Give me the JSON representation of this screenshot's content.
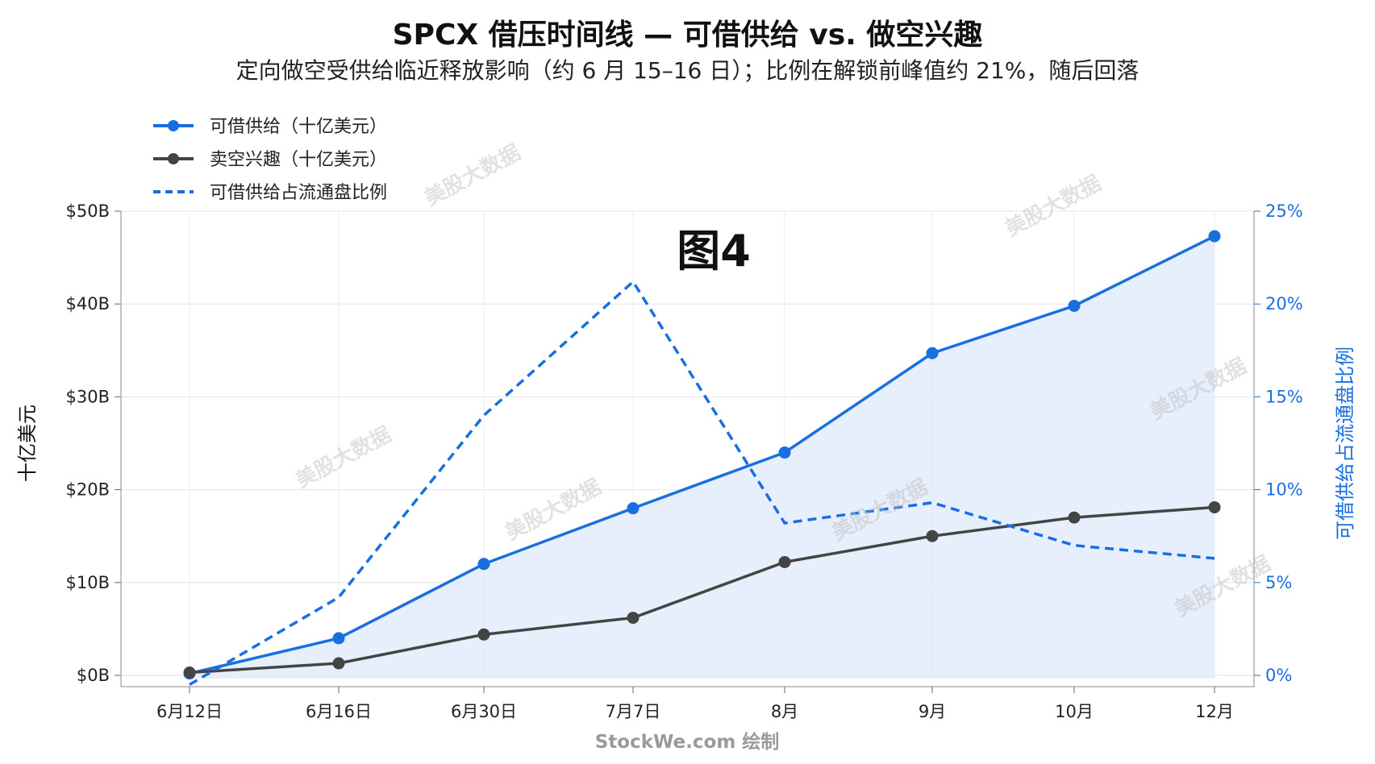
{
  "title": "SPCX 借压时间线 — 可借供给 vs. 做空兴趣",
  "subtitle": "定向做空受供给临近释放影响（约 6 月 15–16 日）；比例在解锁前峰值约 21%，随后回落",
  "badge": "图4",
  "credit": "StockWe.com 绘制",
  "watermark": "美股大数据",
  "chart_data": {
    "type": "line",
    "categories": [
      "6月12日",
      "6月16日",
      "6月30日",
      "7月7日",
      "8月",
      "9月",
      "10月",
      "12月"
    ],
    "series": [
      {
        "name": "可借供给（十亿美元）",
        "axis": "left",
        "style": "solid-marker",
        "color": "#1a6fe0",
        "values": [
          0.2,
          4,
          12,
          18,
          24,
          34.7,
          39.8,
          47.3
        ]
      },
      {
        "name": "卖空兴趣（十亿美元）",
        "axis": "left",
        "style": "solid-marker",
        "color": "#444444",
        "values": [
          0.3,
          1.3,
          4.4,
          6.2,
          12.2,
          15.0,
          17.0,
          18.1
        ]
      },
      {
        "name": "可借供给占流通盘比例",
        "axis": "right",
        "style": "dashed",
        "color": "#1a6fe0",
        "values": [
          -0.5,
          4.2,
          14.0,
          21.2,
          8.2,
          9.3,
          7.0,
          6.3
        ]
      }
    ],
    "ylabel": "十亿美元",
    "ylabel_right": "可借供给占流通盘比例",
    "ylim": [
      0,
      50
    ],
    "ylim_right": [
      0,
      25
    ],
    "yticks": [
      "$0B",
      "$10B",
      "$20B",
      "$30B",
      "$40B",
      "$50B"
    ],
    "yticks_right": [
      "0%",
      "5%",
      "10%",
      "15%",
      "20%",
      "25%"
    ],
    "grid": true,
    "legend_position": "top-left",
    "fill_under_first_series": true
  }
}
